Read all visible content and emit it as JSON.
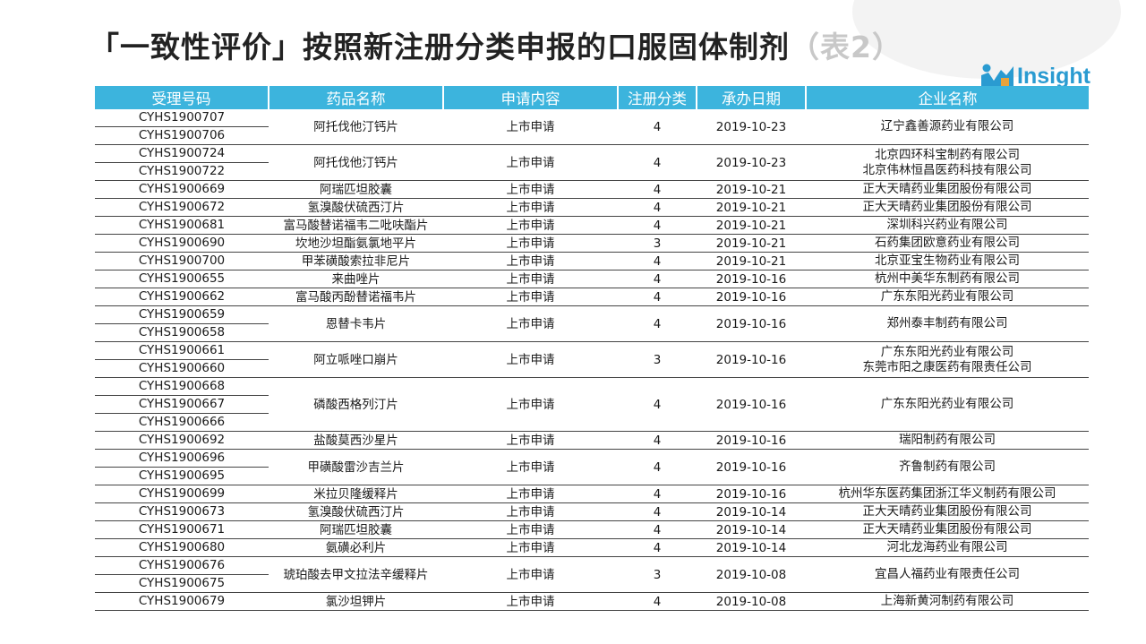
{
  "page": {
    "title": "「一致性评价」按照新注册分类申报的口服固体制剂",
    "title_suffix": "（表2）",
    "logo_text": "Insight",
    "logo_icon": "insight-logo-icon"
  },
  "table": {
    "headers": [
      "受理号码",
      "药品名称",
      "申请内容",
      "注册分类",
      "承办日期",
      "企业名称"
    ],
    "rows": [
      {
        "ids": [
          "CYHS1900707",
          "CYHS1900706"
        ],
        "drug": "阿托伐他汀钙片",
        "content": "上市申请",
        "category": "4",
        "date": "2019-10-23",
        "companies": [
          "辽宁鑫善源药业有限公司"
        ]
      },
      {
        "ids": [
          "CYHS1900724",
          "CYHS1900722"
        ],
        "drug": "阿托伐他汀钙片",
        "content": "上市申请",
        "category": "4",
        "date": "2019-10-23",
        "companies": [
          "北京四环科宝制药有限公司",
          "北京伟林恒昌医药科技有限公司"
        ]
      },
      {
        "ids": [
          "CYHS1900669"
        ],
        "drug": "阿瑞匹坦胶囊",
        "content": "上市申请",
        "category": "4",
        "date": "2019-10-21",
        "companies": [
          "正大天晴药业集团股份有限公司"
        ]
      },
      {
        "ids": [
          "CYHS1900672"
        ],
        "drug": "氢溴酸伏硫西汀片",
        "content": "上市申请",
        "category": "4",
        "date": "2019-10-21",
        "companies": [
          "正大天晴药业集团股份有限公司"
        ]
      },
      {
        "ids": [
          "CYHS1900681"
        ],
        "drug": "富马酸替诺福韦二吡呋酯片",
        "content": "上市申请",
        "category": "4",
        "date": "2019-10-21",
        "companies": [
          "深圳科兴药业有限公司"
        ]
      },
      {
        "ids": [
          "CYHS1900690"
        ],
        "drug": "坎地沙坦酯氨氯地平片",
        "content": "上市申请",
        "category": "3",
        "date": "2019-10-21",
        "companies": [
          "石药集团欧意药业有限公司"
        ]
      },
      {
        "ids": [
          "CYHS1900700"
        ],
        "drug": "甲苯磺酸索拉非尼片",
        "content": "上市申请",
        "category": "4",
        "date": "2019-10-21",
        "companies": [
          "北京亚宝生物药业有限公司"
        ]
      },
      {
        "ids": [
          "CYHS1900655"
        ],
        "drug": "来曲唑片",
        "content": "上市申请",
        "category": "4",
        "date": "2019-10-16",
        "companies": [
          "杭州中美华东制药有限公司"
        ]
      },
      {
        "ids": [
          "CYHS1900662"
        ],
        "drug": "富马酸丙酚替诺福韦片",
        "content": "上市申请",
        "category": "4",
        "date": "2019-10-16",
        "companies": [
          "广东东阳光药业有限公司"
        ]
      },
      {
        "ids": [
          "CYHS1900659",
          "CYHS1900658"
        ],
        "drug": "恩替卡韦片",
        "content": "上市申请",
        "category": "4",
        "date": "2019-10-16",
        "companies": [
          "郑州泰丰制药有限公司"
        ]
      },
      {
        "ids": [
          "CYHS1900661",
          "CYHS1900660"
        ],
        "drug": "阿立哌唑口崩片",
        "content": "上市申请",
        "category": "3",
        "date": "2019-10-16",
        "companies": [
          "广东东阳光药业有限公司",
          "东莞市阳之康医药有限责任公司"
        ]
      },
      {
        "ids": [
          "CYHS1900668",
          "CYHS1900667",
          "CYHS1900666"
        ],
        "drug": "磷酸西格列汀片",
        "content": "上市申请",
        "category": "4",
        "date": "2019-10-16",
        "companies": [
          "广东东阳光药业有限公司"
        ]
      },
      {
        "ids": [
          "CYHS1900692"
        ],
        "drug": "盐酸莫西沙星片",
        "content": "上市申请",
        "category": "4",
        "date": "2019-10-16",
        "companies": [
          "瑞阳制药有限公司"
        ]
      },
      {
        "ids": [
          "CYHS1900696",
          "CYHS1900695"
        ],
        "drug": "甲磺酸雷沙吉兰片",
        "content": "上市申请",
        "category": "4",
        "date": "2019-10-16",
        "companies": [
          "齐鲁制药有限公司"
        ]
      },
      {
        "ids": [
          "CYHS1900699"
        ],
        "drug": "米拉贝隆缓释片",
        "content": "上市申请",
        "category": "4",
        "date": "2019-10-16",
        "companies": [
          "杭州华东医药集团浙江华义制药有限公司"
        ]
      },
      {
        "ids": [
          "CYHS1900673"
        ],
        "drug": "氢溴酸伏硫西汀片",
        "content": "上市申请",
        "category": "4",
        "date": "2019-10-14",
        "companies": [
          "正大天晴药业集团股份有限公司"
        ]
      },
      {
        "ids": [
          "CYHS1900671"
        ],
        "drug": "阿瑞匹坦胶囊",
        "content": "上市申请",
        "category": "4",
        "date": "2019-10-14",
        "companies": [
          "正大天晴药业集团股份有限公司"
        ]
      },
      {
        "ids": [
          "CYHS1900680"
        ],
        "drug": "氨磺必利片",
        "content": "上市申请",
        "category": "4",
        "date": "2019-10-14",
        "companies": [
          "河北龙海药业有限公司"
        ]
      },
      {
        "ids": [
          "CYHS1900676",
          "CYHS1900675"
        ],
        "drug": "琥珀酸去甲文拉法辛缓释片",
        "content": "上市申请",
        "category": "3",
        "date": "2019-10-08",
        "companies": [
          "宜昌人福药业有限责任公司"
        ]
      },
      {
        "ids": [
          "CYHS1900679"
        ],
        "drug": "氯沙坦钾片",
        "content": "上市申请",
        "category": "4",
        "date": "2019-10-08",
        "companies": [
          "上海新黄河制药有限公司"
        ]
      }
    ]
  }
}
